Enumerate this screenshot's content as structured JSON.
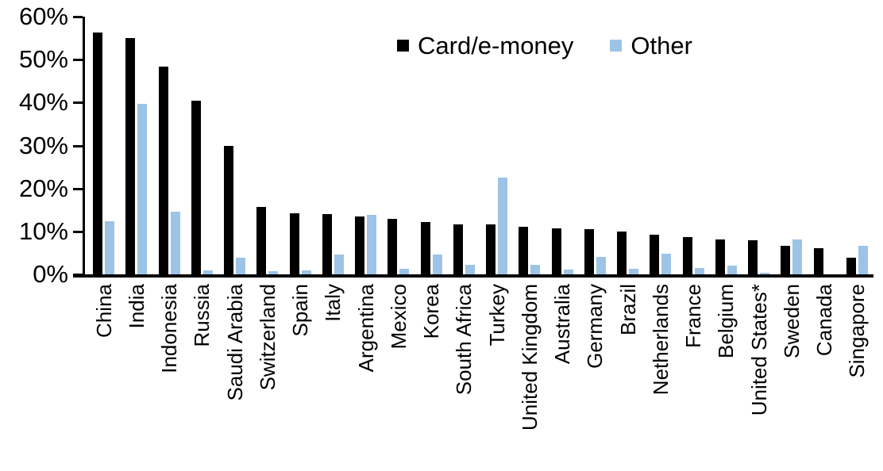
{
  "chart_data": {
    "type": "bar",
    "title": "",
    "xlabel": "",
    "ylabel": "",
    "ylim": [
      0,
      60
    ],
    "yticks": [
      0,
      10,
      20,
      30,
      40,
      50,
      60
    ],
    "ytick_suffix": "%",
    "grid": false,
    "legend_position": "top-center",
    "categories": [
      "China",
      "India",
      "Indonesia",
      "Russia",
      "Saudi Arabia",
      "Switzerland",
      "Spain",
      "Italy",
      "Argentina",
      "Mexico",
      "Korea",
      "South Africa",
      "Turkey",
      "United Kingdom",
      "Australia",
      "Germany",
      "Brazil",
      "Netherlands",
      "France",
      "Belgium",
      "United States*",
      "Sweden",
      "Canada",
      "Singapore"
    ],
    "series": [
      {
        "name": "Card/e-money",
        "color": "#000000",
        "values": [
          56.3,
          55.0,
          48.3,
          40.5,
          29.9,
          15.6,
          14.2,
          14.1,
          13.4,
          13.0,
          12.2,
          11.7,
          11.6,
          11.0,
          10.7,
          10.6,
          10.0,
          9.3,
          8.6,
          8.2,
          7.9,
          6.6,
          6.0,
          3.9
        ]
      },
      {
        "name": "Other",
        "color": "#9DC3E6",
        "values": [
          12.3,
          39.7,
          14.6,
          1.0,
          3.9,
          0.8,
          1.0,
          4.7,
          13.8,
          1.3,
          4.6,
          2.3,
          22.5,
          2.3,
          1.1,
          4.0,
          1.2,
          4.8,
          1.5,
          2.0,
          0.3,
          8.1,
          0.0,
          6.7
        ]
      }
    ],
    "axis_color": "#000000"
  }
}
